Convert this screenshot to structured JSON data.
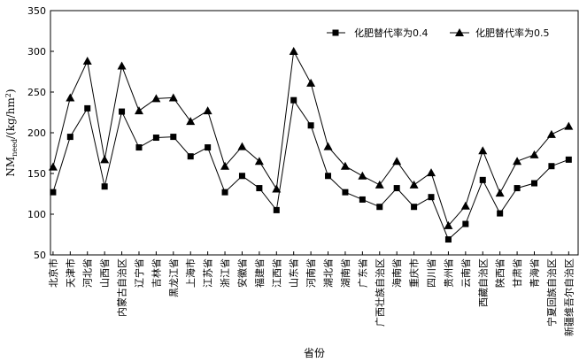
{
  "chart_data": {
    "type": "line",
    "xlabel": "省份",
    "ylabel": "NM_need/(kg/hm²)",
    "ylabel_parts": {
      "main": "NM",
      "sub": "need",
      "unit": "/(kg/hm",
      "sup": "2",
      "close": ")"
    },
    "ylim": [
      50,
      350
    ],
    "yticks": [
      50,
      100,
      150,
      200,
      250,
      300,
      350
    ],
    "grid": false,
    "legend_position": "top-right",
    "categories": [
      "北京市",
      "天津市",
      "河北省",
      "山西省",
      "内蒙古自治区",
      "辽宁省",
      "吉林省",
      "黑龙江省",
      "上海市",
      "江苏省",
      "浙江省",
      "安徽省",
      "福建省",
      "江西省",
      "山东省",
      "河南省",
      "湖北省",
      "湖南省",
      "广东省",
      "广西壮族自治区",
      "海南省",
      "重庆市",
      "四川省",
      "贵州省",
      "云南省",
      "西藏自治区",
      "陕西省",
      "甘肃省",
      "青海省",
      "宁夏回族自治区",
      "新疆维吾尔自治区"
    ],
    "series": [
      {
        "name": "化肥替代率为0.4",
        "marker": "square",
        "values": [
          127,
          195,
          230,
          134,
          226,
          182,
          194,
          195,
          171,
          182,
          127,
          147,
          132,
          105,
          240,
          209,
          147,
          127,
          118,
          109,
          132,
          109,
          121,
          69,
          88,
          142,
          101,
          132,
          138,
          159,
          167
        ]
      },
      {
        "name": "化肥替代率为0.5",
        "marker": "triangle",
        "values": [
          158,
          243,
          288,
          167,
          282,
          227,
          242,
          243,
          214,
          227,
          159,
          183,
          165,
          131,
          300,
          261,
          183,
          159,
          147,
          136,
          165,
          136,
          151,
          86,
          110,
          178,
          126,
          165,
          173,
          198,
          208
        ]
      }
    ]
  }
}
